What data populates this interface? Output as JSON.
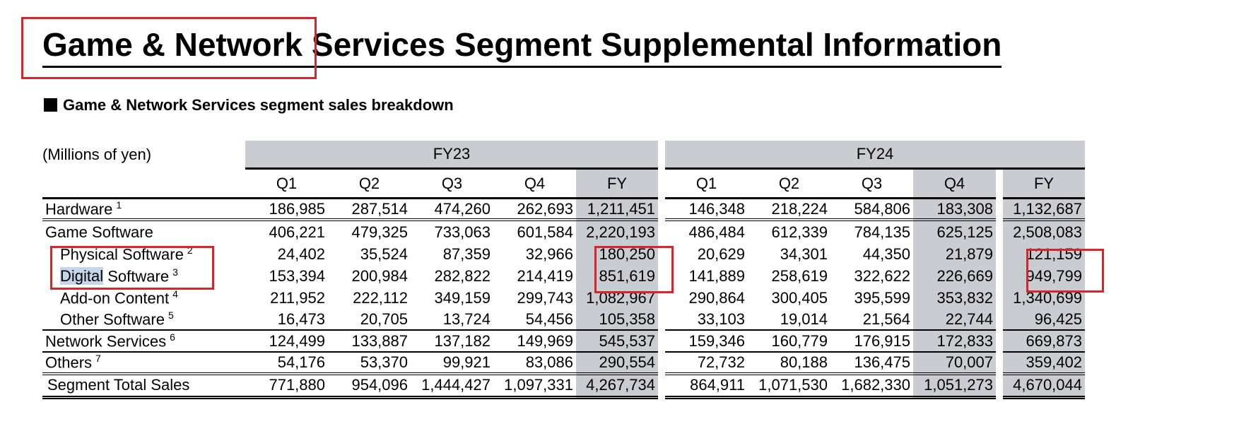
{
  "title": "Game & Network Services Segment Supplemental Information",
  "subtitle": "Game & Network Services segment sales breakdown",
  "units": "(Millions of yen)",
  "years": [
    "FY23",
    "FY24"
  ],
  "column_headers": [
    "Q1",
    "Q2",
    "Q3",
    "Q4",
    "FY"
  ],
  "rows": [
    {
      "label": "Hardware",
      "note": "1",
      "fy23": [
        "186,985",
        "287,514",
        "474,260",
        "262,693",
        "1,211,451"
      ],
      "fy24": [
        "146,348",
        "218,224",
        "584,806",
        "183,308",
        "1,132,687"
      ]
    },
    {
      "label": "Game Software",
      "note": "",
      "fy23": [
        "406,221",
        "479,325",
        "733,063",
        "601,584",
        "2,220,193"
      ],
      "fy24": [
        "486,484",
        "612,339",
        "784,135",
        "625,125",
        "2,508,083"
      ]
    },
    {
      "label": "Physical Software",
      "note": "2",
      "fy23": [
        "24,402",
        "35,524",
        "87,359",
        "32,966",
        "180,250"
      ],
      "fy24": [
        "20,629",
        "34,301",
        "44,350",
        "21,879",
        "121,159"
      ]
    },
    {
      "label_selected": "Digital",
      "label_rest": " Software",
      "note": "3",
      "fy23": [
        "153,394",
        "200,984",
        "282,822",
        "214,419",
        "851,619"
      ],
      "fy24": [
        "141,889",
        "258,619",
        "322,622",
        "226,669",
        "949,799"
      ]
    },
    {
      "label": "Add-on Content",
      "note": "4",
      "fy23": [
        "211,952",
        "222,112",
        "349,159",
        "299,743",
        "1,082,967"
      ],
      "fy24": [
        "290,864",
        "300,405",
        "395,599",
        "353,832",
        "1,340,699"
      ]
    },
    {
      "label": "Other Software",
      "note": "5",
      "fy23": [
        "16,473",
        "20,705",
        "13,724",
        "54,456",
        "105,358"
      ],
      "fy24": [
        "33,103",
        "19,014",
        "21,564",
        "22,744",
        "96,425"
      ]
    },
    {
      "label": "Network Services",
      "note": "6",
      "fy23": [
        "124,499",
        "133,887",
        "137,182",
        "149,969",
        "545,537"
      ],
      "fy24": [
        "159,346",
        "160,779",
        "176,915",
        "172,833",
        "669,873"
      ]
    },
    {
      "label": "Others",
      "note": "7",
      "fy23": [
        "54,176",
        "53,370",
        "99,921",
        "83,086",
        "290,554"
      ],
      "fy24": [
        "72,732",
        "80,188",
        "136,475",
        "70,007",
        "359,402"
      ]
    },
    {
      "label": "Segment Total Sales",
      "note": "",
      "fy23": [
        "771,880",
        "954,096",
        "1,444,427",
        "1,097,331",
        "4,267,734"
      ],
      "fy24": [
        "864,911",
        "1,071,530",
        "1,682,330",
        "1,051,273",
        "4,670,044"
      ]
    }
  ],
  "highlight_color": "#d9242b",
  "shade_color": "#c9ccd0",
  "selection_color": "#c5d6ea"
}
